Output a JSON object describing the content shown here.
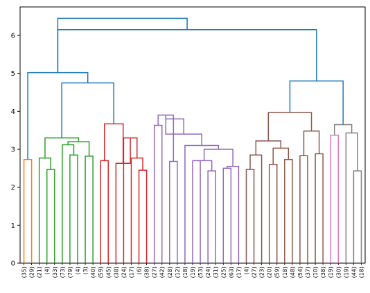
{
  "chart_data": {
    "type": "dendrogram",
    "title": "",
    "xlabel": "",
    "ylabel": "",
    "ylim": [
      0,
      6.75
    ],
    "yticks": [
      0,
      1,
      2,
      3,
      4,
      5,
      6
    ],
    "grid": false,
    "leaf_labels": [
      "(35)",
      "(29)",
      "(21)",
      "(4)",
      "(33)",
      "(73)",
      "(79)",
      "(4)",
      "(3)",
      "(40)",
      "(59)",
      "(45)",
      "(38)",
      "(24)",
      "(17)",
      "(6)",
      "(38)",
      "(27)",
      "(42)",
      "(28)",
      "(12)",
      "(18)",
      "(19)",
      "(53)",
      "(24)",
      "(31)",
      "(25)",
      "(63)",
      "(17)",
      "(4)",
      "(27)",
      "(23)",
      "(20)",
      "(59)",
      "(18)",
      "(48)",
      "(54)",
      "(37)",
      "(10)",
      "(38)",
      "(19)",
      "(30)",
      "(19)",
      "(44)",
      "(18)"
    ],
    "clusters": [
      {
        "name": "",
        "color": "#ff7f0e",
        "leaves": [
          0,
          1
        ]
      },
      {
        "name": "",
        "color": "#2ca02c",
        "leaves": [
          2,
          9
        ]
      },
      {
        "name": "",
        "color": "#d62728",
        "leaves": [
          10,
          16
        ]
      },
      {
        "name": "",
        "color": "#9467bd",
        "leaves": [
          17,
          28
        ]
      },
      {
        "name": "",
        "color": "#8c564b",
        "leaves": [
          29,
          39
        ]
      },
      {
        "name": "",
        "color": "#e377c2",
        "leaves": [
          40,
          41
        ]
      },
      {
        "name": "",
        "color": "#7f7f7f",
        "leaves": [
          42,
          44
        ]
      }
    ],
    "above_threshold_color": "#1f77b4",
    "merges": [
      {
        "left": 0,
        "right": 1,
        "height": 2.73,
        "color": "#ff7f0e"
      },
      {
        "left": 3,
        "right": 4,
        "height": 2.47,
        "color": "#2ca02c"
      },
      {
        "left": 2,
        "right": "m1",
        "height": 2.77,
        "color": "#2ca02c"
      },
      {
        "left": 6,
        "right": 7,
        "height": 2.85,
        "color": "#2ca02c"
      },
      {
        "left": 5,
        "right": "m3",
        "height": 3.12,
        "color": "#2ca02c"
      },
      {
        "left": 8,
        "right": 9,
        "height": 2.82,
        "color": "#2ca02c"
      },
      {
        "left": "m4",
        "right": "m5",
        "height": 3.2,
        "color": "#2ca02c"
      },
      {
        "left": "m2",
        "right": "m6",
        "height": 3.3,
        "color": "#2ca02c"
      },
      {
        "left": 10,
        "right": 11,
        "height": 2.7,
        "color": "#d62728"
      },
      {
        "left": 15,
        "right": 16,
        "height": 2.45,
        "color": "#d62728"
      },
      {
        "left": 14,
        "right": "m9",
        "height": 2.77,
        "color": "#d62728"
      },
      {
        "left": 13,
        "right": "m10",
        "height": 3.3,
        "color": "#d62728"
      },
      {
        "left": 12,
        "right": "m11",
        "height": 2.63,
        "color": "#d62728"
      },
      {
        "left": "m8",
        "right": "m12",
        "height": 3.67,
        "color": "#d62728"
      },
      {
        "left": 17,
        "right": 18,
        "height": 3.63,
        "color": "#9467bd"
      },
      {
        "left": 19,
        "right": 20,
        "height": 2.68,
        "color": "#9467bd"
      },
      {
        "left": "m14",
        "right": "m15",
        "height": 3.9,
        "color": "#9467bd"
      },
      {
        "left": 22,
        "right": 23,
        "height": 2.7,
        "color": "#9467bd"
      },
      {
        "left": 24,
        "right": 25,
        "height": 2.43,
        "color": "#9467bd"
      },
      {
        "left": "m17",
        "right": "m18",
        "height": 2.7,
        "color": "#9467bd"
      },
      {
        "left": 26,
        "right": 27,
        "height": 2.5,
        "color": "#9467bd"
      },
      {
        "left": 28,
        "right": "m20",
        "height": 2.55,
        "color": "#9467bd"
      },
      {
        "left": "m19",
        "right": "m21",
        "height": 3.0,
        "color": "#9467bd"
      },
      {
        "left": 21,
        "right": "m22",
        "height": 3.1,
        "color": "#9467bd"
      },
      {
        "left": "m23",
        "right": "m16",
        "height": 3.4,
        "color": "#9467bd"
      },
      {
        "left": "m24",
        "right": "m16",
        "height": 3.8,
        "color": "#9467bd"
      },
      {
        "left": "m7",
        "right": "m13",
        "height": 4.75,
        "color": "#1f77b4"
      },
      {
        "left": 29,
        "right": 30,
        "height": 2.47,
        "color": "#8c564b"
      },
      {
        "left": 31,
        "right": "m27",
        "height": 2.85,
        "color": "#8c564b"
      },
      {
        "left": 32,
        "right": 33,
        "height": 2.6,
        "color": "#8c564b"
      },
      {
        "left": 34,
        "right": 35,
        "height": 2.73,
        "color": "#8c564b"
      },
      {
        "left": "m29",
        "right": "m30",
        "height": 3.03,
        "color": "#8c564b"
      },
      {
        "left": "m28",
        "right": "m31",
        "height": 3.22,
        "color": "#8c564b"
      },
      {
        "left": 36,
        "right": 37,
        "height": 2.83,
        "color": "#8c564b"
      },
      {
        "left": 38,
        "right": 39,
        "height": 2.88,
        "color": "#8c564b"
      },
      {
        "left": "m33",
        "right": "m34",
        "height": 3.48,
        "color": "#8c564b"
      },
      {
        "left": "m32",
        "right": "m35",
        "height": 3.97,
        "color": "#8c564b"
      },
      {
        "left": 40,
        "right": 41,
        "height": 3.37,
        "color": "#e377c2"
      },
      {
        "left": 43,
        "right": 44,
        "height": 2.43,
        "color": "#7f7f7f"
      },
      {
        "left": 42,
        "right": "m38",
        "height": 3.43,
        "color": "#7f7f7f"
      },
      {
        "left": "m37",
        "right": "m39",
        "height": 3.65,
        "color": "#7f7f7f"
      },
      {
        "left": "m36",
        "right": "m40",
        "height": 4.8,
        "color": "#1f77b4"
      },
      {
        "left": "m0",
        "right": "m26",
        "height": 5.02,
        "color": "#1f77b4"
      },
      {
        "left": "m41",
        "right": "m42",
        "height": 6.15,
        "color": "#1f77b4"
      },
      {
        "left": "m42",
        "right": "m43",
        "height": 6.45,
        "color": "#1f77b4"
      }
    ]
  }
}
